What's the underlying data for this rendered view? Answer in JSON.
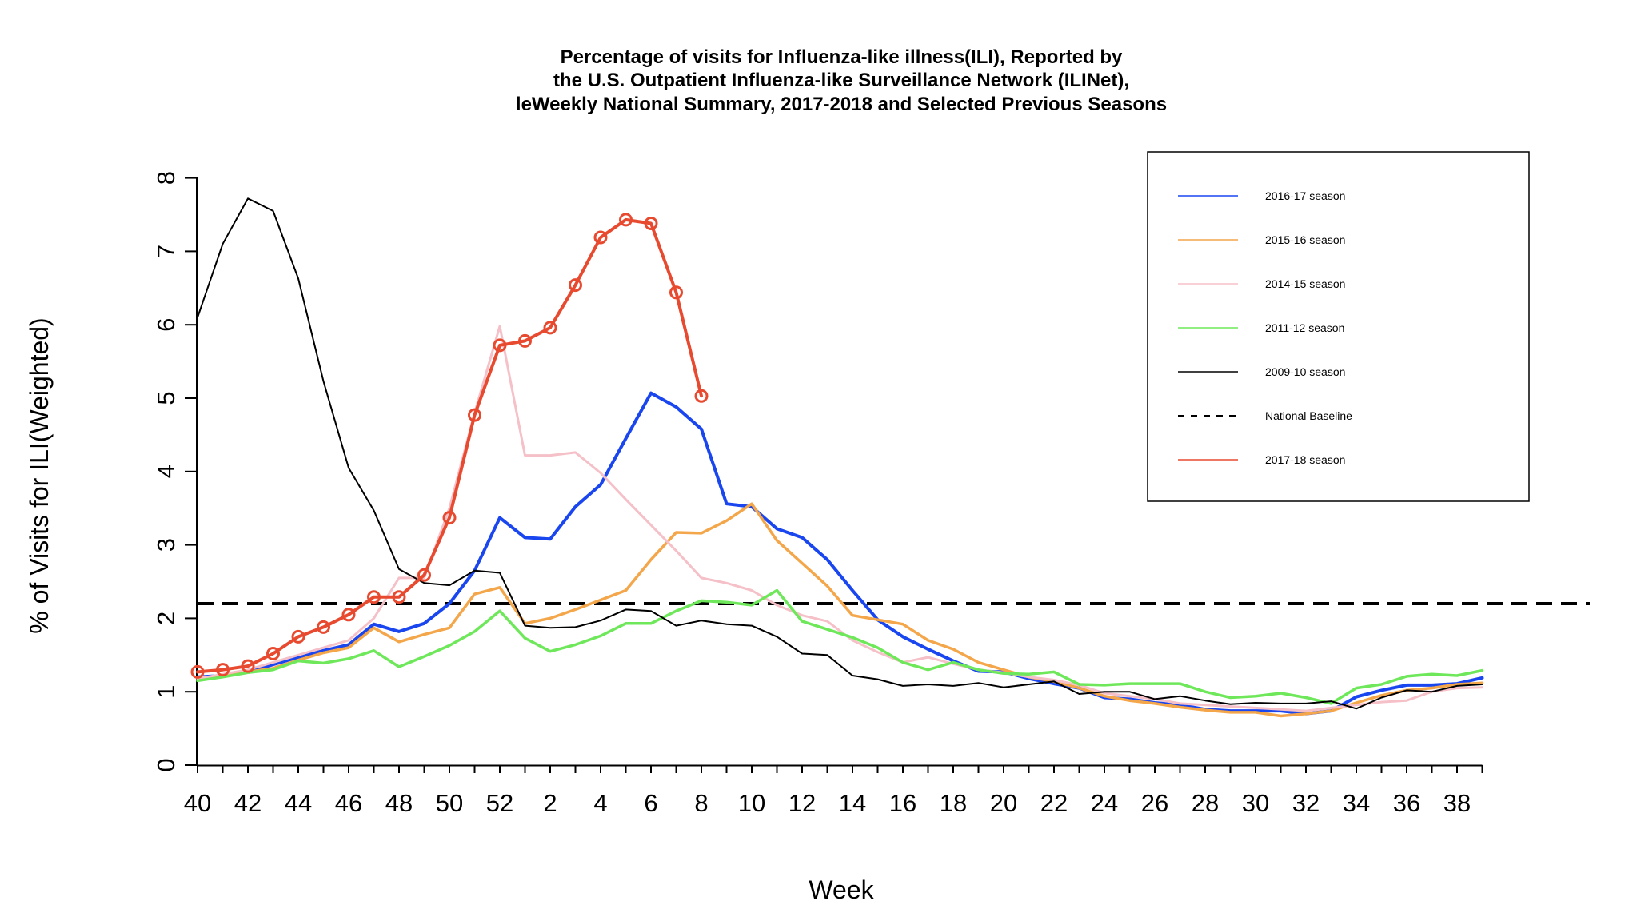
{
  "chart_data": {
    "type": "line",
    "title": [
      "Percentage of visits for Influenza-like illness(ILI), Reported by",
      "the U.S. Outpatient Influenza-like Surveillance Network (ILINet),",
      "leWeekly National Summary, 2017-2018 and Selected Previous Seasons"
    ],
    "xlabel": "Week",
    "ylabel": "% of Visits for ILI(Weighted)",
    "ylim": [
      0,
      8
    ],
    "y_ticks": [
      "0",
      "1",
      "2",
      "3",
      "4",
      "5",
      "6",
      "7",
      "8"
    ],
    "x_weeks": [
      40,
      41,
      42,
      43,
      44,
      45,
      46,
      47,
      48,
      49,
      50,
      51,
      52,
      1,
      2,
      3,
      4,
      5,
      6,
      7,
      8,
      9,
      10,
      11,
      12,
      13,
      14,
      15,
      16,
      17,
      18,
      19,
      20,
      21,
      22,
      23,
      24,
      25,
      26,
      27,
      28,
      29,
      30,
      31,
      32,
      33,
      34,
      35,
      36,
      37,
      38,
      39
    ],
    "x_tick_labels": [
      "40",
      "42",
      "44",
      "46",
      "48",
      "50",
      "52",
      "2",
      "4",
      "6",
      "8",
      "10",
      "12",
      "14",
      "16",
      "18",
      "20",
      "22",
      "24",
      "26",
      "28",
      "30",
      "32",
      "34",
      "36",
      "38"
    ],
    "legend_position": "top-right",
    "baseline": {
      "name": "National Baseline",
      "value": 2.2,
      "color": "#000000"
    },
    "series": [
      {
        "name": "2016-17 season",
        "color": "#1a46f0",
        "values": [
          1.2,
          1.22,
          1.27,
          1.37,
          1.47,
          1.56,
          1.64,
          1.92,
          1.82,
          1.93,
          2.2,
          2.65,
          3.37,
          3.1,
          3.08,
          3.52,
          3.82,
          4.45,
          5.07,
          4.88,
          4.58,
          3.56,
          3.52,
          3.22,
          3.1,
          2.8,
          2.38,
          1.98,
          1.75,
          1.58,
          1.42,
          1.28,
          1.27,
          1.18,
          1.11,
          1.05,
          0.92,
          0.9,
          0.85,
          0.82,
          0.76,
          0.74,
          0.74,
          0.74,
          0.7,
          0.74,
          0.93,
          1.02,
          1.09,
          1.09,
          1.11,
          1.19
        ]
      },
      {
        "name": "2015-16 season",
        "color": "#f4a64a",
        "values": [
          1.18,
          1.22,
          1.27,
          1.32,
          1.43,
          1.53,
          1.6,
          1.87,
          1.68,
          1.78,
          1.87,
          2.33,
          2.42,
          1.93,
          2.0,
          2.12,
          2.25,
          2.38,
          2.8,
          3.17,
          3.16,
          3.33,
          3.56,
          3.06,
          2.75,
          2.44,
          2.04,
          1.98,
          1.92,
          1.7,
          1.58,
          1.4,
          1.3,
          1.2,
          1.14,
          1.05,
          0.94,
          0.88,
          0.84,
          0.79,
          0.75,
          0.72,
          0.72,
          0.67,
          0.7,
          0.74,
          0.85,
          0.95,
          1.02,
          1.05,
          1.1,
          1.12
        ]
      },
      {
        "name": "2014-15 season",
        "color": "#f5c0c8",
        "values": [
          1.18,
          1.24,
          1.3,
          1.4,
          1.5,
          1.6,
          1.7,
          2.0,
          2.55,
          2.55,
          3.5,
          4.8,
          5.98,
          4.22,
          4.22,
          4.26,
          3.98,
          3.62,
          3.27,
          2.92,
          2.55,
          2.48,
          2.38,
          2.18,
          2.04,
          1.96,
          1.7,
          1.54,
          1.4,
          1.47,
          1.38,
          1.3,
          1.26,
          1.2,
          1.16,
          1.09,
          0.98,
          0.94,
          0.9,
          0.84,
          0.82,
          0.8,
          0.78,
          0.76,
          0.74,
          0.78,
          0.82,
          0.86,
          0.88,
          1.0,
          1.05,
          1.06
        ]
      },
      {
        "name": "2011-12 season",
        "color": "#6ee85a",
        "values": [
          1.15,
          1.2,
          1.26,
          1.3,
          1.42,
          1.39,
          1.45,
          1.56,
          1.34,
          1.48,
          1.63,
          1.82,
          2.1,
          1.73,
          1.55,
          1.64,
          1.76,
          1.93,
          1.93,
          2.1,
          2.24,
          2.22,
          2.18,
          2.38,
          1.96,
          1.85,
          1.74,
          1.6,
          1.4,
          1.3,
          1.4,
          1.3,
          1.25,
          1.24,
          1.27,
          1.1,
          1.09,
          1.11,
          1.11,
          1.11,
          1.0,
          0.92,
          0.94,
          0.98,
          0.92,
          0.84,
          1.05,
          1.1,
          1.21,
          1.24,
          1.22,
          1.29
        ]
      },
      {
        "name": "2009-10 season",
        "color": "#000000",
        "values": [
          6.1,
          7.1,
          7.72,
          7.55,
          6.63,
          5.23,
          4.05,
          3.47,
          2.67,
          2.48,
          2.45,
          2.65,
          2.62,
          1.9,
          1.87,
          1.88,
          1.97,
          2.12,
          2.1,
          1.9,
          1.97,
          1.92,
          1.9,
          1.75,
          1.52,
          1.5,
          1.22,
          1.17,
          1.08,
          1.1,
          1.08,
          1.12,
          1.06,
          1.1,
          1.14,
          0.97,
          1.0,
          1.0,
          0.9,
          0.94,
          0.88,
          0.83,
          0.85,
          0.84,
          0.84,
          0.87,
          0.77,
          0.92,
          1.02,
          1.0,
          1.08,
          1.1
        ]
      },
      {
        "name": "2017-18 season",
        "color": "#e84a30",
        "markers": true,
        "values": [
          1.27,
          1.3,
          1.35,
          1.52,
          1.75,
          1.88,
          2.05,
          2.29,
          2.29,
          2.59,
          3.37,
          4.77,
          5.72,
          5.78,
          5.96,
          6.54,
          7.19,
          7.43,
          7.38,
          6.44,
          5.03
        ]
      }
    ]
  }
}
